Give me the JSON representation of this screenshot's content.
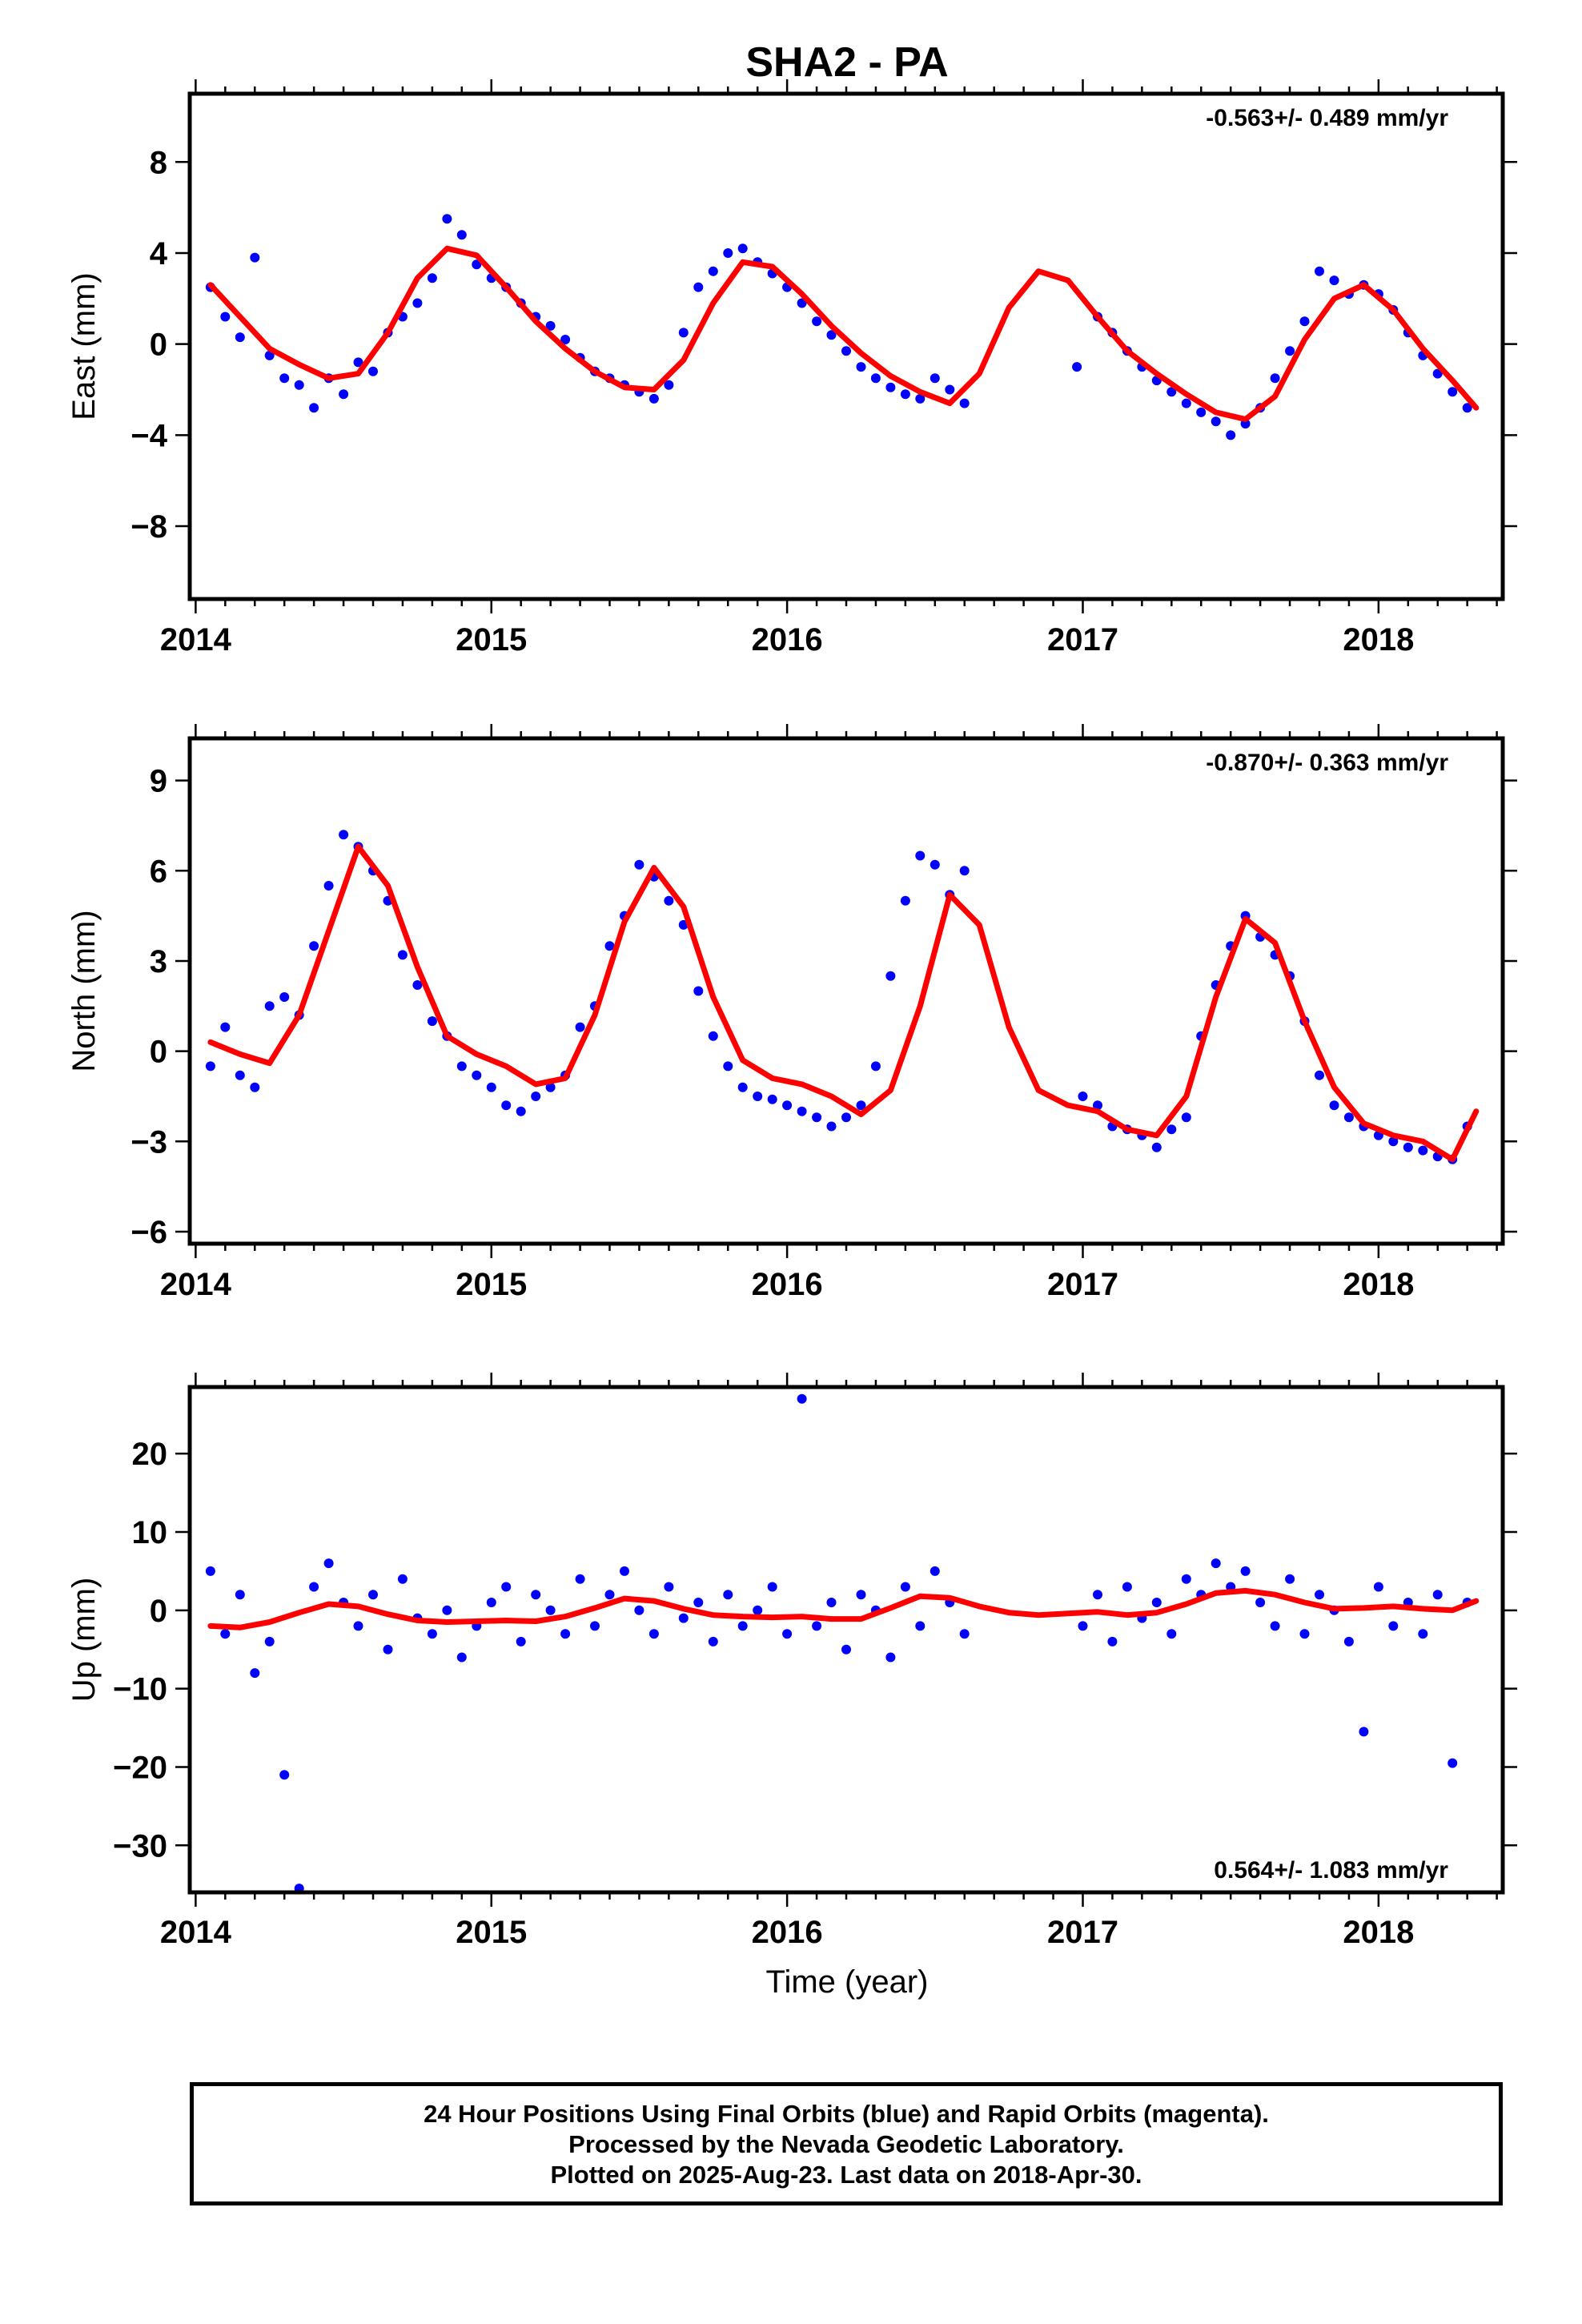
{
  "title": "SHA2 - PA",
  "xlabel": "Time (year)",
  "caption": [
    "24 Hour Positions Using Final Orbits (blue) and Rapid Orbits (magenta).",
    "Processed by the Nevada Geodetic Laboratory.",
    "Plotted on 2025-Aug-23. Last data on 2018-Apr-30."
  ],
  "colors": {
    "points": "#0000ff",
    "model": "#ff0000",
    "frame": "#000000"
  },
  "chart_data": [
    {
      "type": "scatter",
      "ylabel": "East (mm)",
      "rate_label": "-0.563+/- 0.489 mm/yr",
      "rate_position": "top-right",
      "xlim": [
        2013.98,
        2018.42
      ],
      "ylim": [
        -11.2,
        11.0
      ],
      "x_ticks": [
        2014,
        2015,
        2016,
        2017,
        2018
      ],
      "y_ticks": [
        -8,
        -4,
        0,
        4,
        8
      ],
      "y_tick_labels": [
        "−8",
        "−4",
        "0",
        "4",
        "8"
      ],
      "series": [
        {
          "kind": "points",
          "color": "#0000ff",
          "x": [
            2014.05,
            2014.1,
            2014.15,
            2014.2,
            2014.25,
            2014.3,
            2014.35,
            2014.4,
            2014.45,
            2014.5,
            2014.55,
            2014.6,
            2014.65,
            2014.7,
            2014.75,
            2014.8,
            2014.85,
            2014.9,
            2014.95,
            2015.0,
            2015.05,
            2015.1,
            2015.15,
            2015.2,
            2015.25,
            2015.3,
            2015.35,
            2015.4,
            2015.45,
            2015.5,
            2015.55,
            2015.6,
            2015.65,
            2015.7,
            2015.75,
            2015.8,
            2015.85,
            2015.9,
            2015.95,
            2016.0,
            2016.05,
            2016.1,
            2016.15,
            2016.2,
            2016.25,
            2016.3,
            2016.35,
            2016.4,
            2016.45,
            2016.5,
            2016.55,
            2016.6,
            2016.98,
            2017.05,
            2017.1,
            2017.15,
            2017.2,
            2017.25,
            2017.3,
            2017.35,
            2017.4,
            2017.45,
            2017.5,
            2017.55,
            2017.6,
            2017.65,
            2017.7,
            2017.75,
            2017.8,
            2017.85,
            2017.9,
            2017.95,
            2018.0,
            2018.05,
            2018.1,
            2018.15,
            2018.2,
            2018.25,
            2018.3
          ],
          "y": [
            2.5,
            1.2,
            0.3,
            3.8,
            -0.5,
            -1.5,
            -1.8,
            -2.8,
            -1.5,
            -2.2,
            -0.8,
            -1.2,
            0.5,
            1.2,
            1.8,
            2.9,
            5.5,
            4.8,
            3.5,
            2.9,
            2.5,
            1.8,
            1.2,
            0.8,
            0.2,
            -0.6,
            -1.2,
            -1.5,
            -1.8,
            -2.1,
            -2.4,
            -1.8,
            0.5,
            2.5,
            3.2,
            4.0,
            4.2,
            3.6,
            3.1,
            2.5,
            1.8,
            1.0,
            0.4,
            -0.3,
            -1.0,
            -1.5,
            -1.9,
            -2.2,
            -2.4,
            -1.5,
            -2.0,
            -2.6,
            -1.0,
            1.2,
            0.5,
            -0.3,
            -1.0,
            -1.6,
            -2.1,
            -2.6,
            -3.0,
            -3.4,
            -4.0,
            -3.5,
            -2.8,
            -1.5,
            -0.3,
            1.0,
            3.2,
            2.8,
            2.2,
            2.6,
            2.2,
            1.5,
            0.5,
            -0.5,
            -1.3,
            -2.1,
            -2.8
          ]
        },
        {
          "kind": "line",
          "color": "#ff0000",
          "x": [
            2014.05,
            2014.15,
            2014.25,
            2014.35,
            2014.45,
            2014.55,
            2014.65,
            2014.75,
            2014.85,
            2014.95,
            2015.05,
            2015.15,
            2015.25,
            2015.35,
            2015.45,
            2015.55,
            2015.65,
            2015.75,
            2015.85,
            2015.95,
            2016.05,
            2016.15,
            2016.25,
            2016.35,
            2016.45,
            2016.55,
            2016.65,
            2016.75,
            2016.85,
            2016.95,
            2017.05,
            2017.15,
            2017.25,
            2017.35,
            2017.45,
            2017.55,
            2017.65,
            2017.75,
            2017.85,
            2017.95,
            2018.05,
            2018.15,
            2018.25,
            2018.33
          ],
          "y": [
            2.6,
            1.2,
            -0.2,
            -0.9,
            -1.5,
            -1.3,
            0.5,
            2.9,
            4.2,
            3.9,
            2.5,
            1.0,
            -0.2,
            -1.2,
            -1.9,
            -2.0,
            -0.7,
            1.8,
            3.6,
            3.4,
            2.2,
            0.8,
            -0.4,
            -1.4,
            -2.1,
            -2.6,
            -1.3,
            1.6,
            3.2,
            2.8,
            1.2,
            -0.3,
            -1.3,
            -2.2,
            -3.0,
            -3.3,
            -2.3,
            0.2,
            2.0,
            2.6,
            1.5,
            -0.2,
            -1.6,
            -2.8
          ]
        }
      ]
    },
    {
      "type": "scatter",
      "ylabel": "North (mm)",
      "rate_label": "-0.870+/- 0.363 mm/yr",
      "rate_position": "top-right",
      "xlim": [
        2013.98,
        2018.42
      ],
      "ylim": [
        -6.4,
        10.4
      ],
      "x_ticks": [
        2014,
        2015,
        2016,
        2017,
        2018
      ],
      "y_ticks": [
        -6,
        -3,
        0,
        3,
        6,
        9
      ],
      "y_tick_labels": [
        "−6",
        "−3",
        "0",
        "3",
        "6",
        "9"
      ],
      "series": [
        {
          "kind": "points",
          "color": "#0000ff",
          "x": [
            2014.05,
            2014.1,
            2014.15,
            2014.2,
            2014.25,
            2014.3,
            2014.35,
            2014.4,
            2014.45,
            2014.5,
            2014.55,
            2014.6,
            2014.65,
            2014.7,
            2014.75,
            2014.8,
            2014.85,
            2014.9,
            2014.95,
            2015.0,
            2015.05,
            2015.1,
            2015.15,
            2015.2,
            2015.25,
            2015.3,
            2015.35,
            2015.4,
            2015.45,
            2015.5,
            2015.55,
            2015.6,
            2015.65,
            2015.7,
            2015.75,
            2015.8,
            2015.85,
            2015.9,
            2015.95,
            2016.0,
            2016.05,
            2016.1,
            2016.15,
            2016.2,
            2016.25,
            2016.3,
            2016.35,
            2016.4,
            2016.45,
            2016.5,
            2016.55,
            2016.6,
            2017.0,
            2017.05,
            2017.1,
            2017.15,
            2017.2,
            2017.25,
            2017.3,
            2017.35,
            2017.4,
            2017.45,
            2017.5,
            2017.55,
            2017.6,
            2017.65,
            2017.7,
            2017.75,
            2017.8,
            2017.85,
            2017.9,
            2017.95,
            2018.0,
            2018.05,
            2018.1,
            2018.15,
            2018.2,
            2018.25,
            2018.3
          ],
          "y": [
            -0.5,
            0.8,
            -0.8,
            -1.2,
            1.5,
            1.8,
            1.2,
            3.5,
            5.5,
            7.2,
            6.8,
            6.0,
            5.0,
            3.2,
            2.2,
            1.0,
            0.5,
            -0.5,
            -0.8,
            -1.2,
            -1.8,
            -2.0,
            -1.5,
            -1.2,
            -0.8,
            0.8,
            1.5,
            3.5,
            4.5,
            6.2,
            5.8,
            5.0,
            4.2,
            2.0,
            0.5,
            -0.5,
            -1.2,
            -1.5,
            -1.6,
            -1.8,
            -2.0,
            -2.2,
            -2.5,
            -2.2,
            -1.8,
            -0.5,
            2.5,
            5.0,
            6.5,
            6.2,
            5.2,
            6.0,
            -1.5,
            -1.8,
            -2.5,
            -2.6,
            -2.8,
            -3.2,
            -2.6,
            -2.2,
            0.5,
            2.2,
            3.5,
            4.5,
            3.8,
            3.2,
            2.5,
            1.0,
            -0.8,
            -1.8,
            -2.2,
            -2.5,
            -2.8,
            -3.0,
            -3.2,
            -3.3,
            -3.5,
            -3.6,
            -2.5
          ]
        },
        {
          "kind": "line",
          "color": "#ff0000",
          "x": [
            2014.05,
            2014.15,
            2014.25,
            2014.35,
            2014.45,
            2014.55,
            2014.65,
            2014.75,
            2014.85,
            2014.95,
            2015.05,
            2015.15,
            2015.25,
            2015.35,
            2015.45,
            2015.55,
            2015.65,
            2015.75,
            2015.85,
            2015.95,
            2016.05,
            2016.15,
            2016.25,
            2016.35,
            2016.45,
            2016.55,
            2016.65,
            2016.75,
            2016.85,
            2016.95,
            2017.05,
            2017.15,
            2017.25,
            2017.35,
            2017.45,
            2017.55,
            2017.65,
            2017.75,
            2017.85,
            2017.95,
            2018.05,
            2018.15,
            2018.25,
            2018.33
          ],
          "y": [
            0.3,
            -0.1,
            -0.4,
            1.2,
            4.0,
            6.8,
            5.5,
            2.8,
            0.5,
            -0.1,
            -0.5,
            -1.1,
            -0.9,
            1.2,
            4.3,
            6.1,
            4.8,
            1.8,
            -0.3,
            -0.9,
            -1.1,
            -1.5,
            -2.1,
            -1.3,
            1.5,
            5.2,
            4.2,
            0.8,
            -1.3,
            -1.8,
            -2.0,
            -2.6,
            -2.8,
            -1.5,
            1.8,
            4.4,
            3.6,
            1.0,
            -1.2,
            -2.4,
            -2.8,
            -3.0,
            -3.6,
            -2.0
          ]
        }
      ]
    },
    {
      "type": "scatter",
      "ylabel": "Up (mm)",
      "rate_label": "0.564+/- 1.083 mm/yr",
      "rate_position": "bottom-right",
      "xlim": [
        2013.98,
        2018.42
      ],
      "ylim": [
        -36.0,
        28.5
      ],
      "x_ticks": [
        2014,
        2015,
        2016,
        2017,
        2018
      ],
      "x_tick_labels": [
        "2014",
        "2015",
        "2016",
        "2017",
        "2018"
      ],
      "y_ticks": [
        -30,
        -20,
        -10,
        0,
        10,
        20
      ],
      "y_tick_labels": [
        "−30",
        "−20",
        "−10",
        "0",
        "10",
        "20"
      ],
      "series": [
        {
          "kind": "points",
          "color": "#0000ff",
          "x": [
            2014.05,
            2014.1,
            2014.15,
            2014.2,
            2014.25,
            2014.3,
            2014.35,
            2014.4,
            2014.45,
            2014.5,
            2014.55,
            2014.6,
            2014.65,
            2014.7,
            2014.75,
            2014.8,
            2014.85,
            2014.9,
            2014.95,
            2015.0,
            2015.05,
            2015.1,
            2015.15,
            2015.2,
            2015.25,
            2015.3,
            2015.35,
            2015.4,
            2015.45,
            2015.5,
            2015.55,
            2015.6,
            2015.65,
            2015.7,
            2015.75,
            2015.8,
            2015.85,
            2015.9,
            2015.95,
            2016.0,
            2016.05,
            2016.1,
            2016.15,
            2016.2,
            2016.25,
            2016.3,
            2016.35,
            2016.4,
            2016.45,
            2016.5,
            2016.55,
            2016.6,
            2017.0,
            2017.05,
            2017.1,
            2017.15,
            2017.2,
            2017.25,
            2017.3,
            2017.35,
            2017.4,
            2017.45,
            2017.5,
            2017.55,
            2017.6,
            2017.65,
            2017.7,
            2017.75,
            2017.8,
            2017.85,
            2017.9,
            2017.95,
            2018.0,
            2018.05,
            2018.1,
            2018.15,
            2018.2,
            2018.25,
            2018.3
          ],
          "y": [
            5.0,
            -3.0,
            2.0,
            -8.0,
            -4.0,
            -21.0,
            -35.5,
            3.0,
            6.0,
            1.0,
            -2.0,
            2.0,
            -5.0,
            4.0,
            -1.0,
            -3.0,
            0.0,
            -6.0,
            -2.0,
            1.0,
            3.0,
            -4.0,
            2.0,
            0.0,
            -3.0,
            4.0,
            -2.0,
            2.0,
            5.0,
            0.0,
            -3.0,
            3.0,
            -1.0,
            1.0,
            -4.0,
            2.0,
            -2.0,
            0.0,
            3.0,
            -3.0,
            27.0,
            -2.0,
            1.0,
            -5.0,
            2.0,
            0.0,
            -6.0,
            3.0,
            -2.0,
            5.0,
            1.0,
            -3.0,
            -2.0,
            2.0,
            -4.0,
            3.0,
            -1.0,
            1.0,
            -3.0,
            4.0,
            2.0,
            6.0,
            3.0,
            5.0,
            1.0,
            -2.0,
            4.0,
            -3.0,
            2.0,
            0.0,
            -4.0,
            -15.5,
            3.0,
            -2.0,
            1.0,
            -3.0,
            2.0,
            -19.5,
            1.0
          ]
        },
        {
          "kind": "line",
          "color": "#ff0000",
          "x": [
            2014.05,
            2014.15,
            2014.25,
            2014.35,
            2014.45,
            2014.55,
            2014.65,
            2014.75,
            2014.85,
            2014.95,
            2015.05,
            2015.15,
            2015.25,
            2015.35,
            2015.45,
            2015.55,
            2015.65,
            2015.75,
            2015.85,
            2015.95,
            2016.05,
            2016.15,
            2016.25,
            2016.35,
            2016.45,
            2016.55,
            2016.65,
            2016.75,
            2016.85,
            2016.95,
            2017.05,
            2017.15,
            2017.25,
            2017.35,
            2017.45,
            2017.55,
            2017.65,
            2017.75,
            2017.85,
            2017.95,
            2018.05,
            2018.15,
            2018.25,
            2018.33
          ],
          "y": [
            -2.0,
            -2.2,
            -1.5,
            -0.3,
            0.8,
            0.5,
            -0.5,
            -1.3,
            -1.5,
            -1.4,
            -1.3,
            -1.4,
            -0.8,
            0.3,
            1.5,
            1.2,
            0.2,
            -0.6,
            -0.8,
            -0.9,
            -0.8,
            -1.1,
            -1.1,
            0.3,
            1.8,
            1.6,
            0.5,
            -0.3,
            -0.6,
            -0.4,
            -0.2,
            -0.6,
            -0.3,
            0.8,
            2.2,
            2.5,
            2.0,
            1.0,
            0.2,
            0.3,
            0.5,
            0.2,
            0.0,
            1.2
          ]
        }
      ]
    }
  ]
}
